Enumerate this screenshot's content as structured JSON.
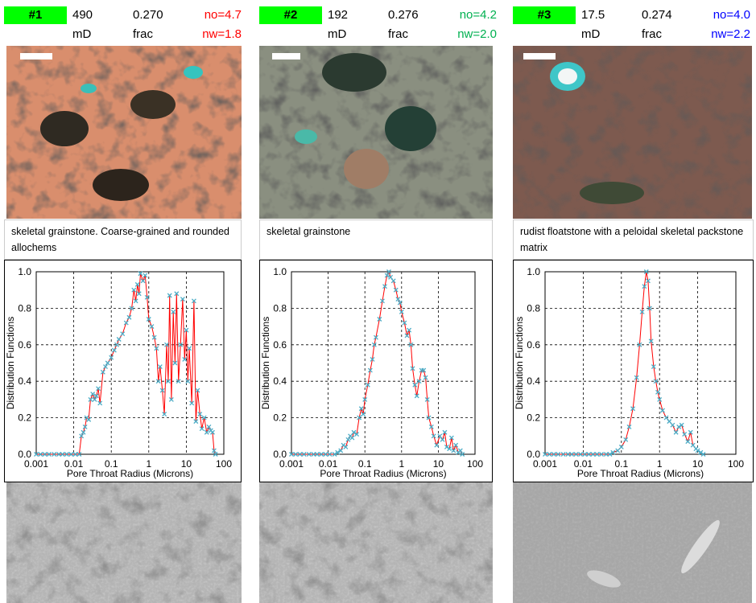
{
  "panels": [
    {
      "label": "#1",
      "perm": "490",
      "porosity": "0.270",
      "no": "no=4.7",
      "perm_unit": "mD",
      "porosity_unit": "frac",
      "nw": "nw=1.8",
      "color": "#ff0000",
      "caption": "skeletal grainstone. Coarse-grained and rounded allochems"
    },
    {
      "label": "#2",
      "perm": "192",
      "porosity": "0.276",
      "no": "no=4.2",
      "perm_unit": "mD",
      "porosity_unit": "frac",
      "nw": "nw=2.0",
      "color": "#00b050",
      "caption": "skeletal grainstone"
    },
    {
      "label": "#3",
      "perm": "17.5",
      "porosity": "0.274",
      "no": "no=4.0",
      "perm_unit": "mD",
      "porosity_unit": "frac",
      "nw": "nw=2.2",
      "color": "#0000ff",
      "caption": "rudist floatstone with a peloidal skeletal packstone matrix"
    }
  ],
  "chart_data": [
    {
      "type": "line",
      "xlabel": "Pore Throat Radius (Microns)",
      "ylabel": "Distribution Functions",
      "xlog": true,
      "grid": true,
      "xlim": [
        0.001,
        100
      ],
      "xticks": [
        0.001,
        0.01,
        0.1,
        1,
        10,
        100
      ],
      "ylim": [
        0,
        1
      ],
      "yticks": [
        {
          "value": 0,
          "label": "0.0"
        },
        0.2,
        0.4,
        0.6,
        0.8,
        {
          "value": 1,
          "label": "1.0"
        }
      ],
      "series": [
        {
          "color": "#ff0000",
          "marker_color": "#4bacc6",
          "x": [
            0.001,
            0.0013,
            0.0017,
            0.0022,
            0.003,
            0.004,
            0.005,
            0.0065,
            0.0085,
            0.011,
            0.014,
            0.016,
            0.018,
            0.02,
            0.022,
            0.025,
            0.028,
            0.032,
            0.036,
            0.04,
            0.045,
            0.05,
            0.06,
            0.07,
            0.08,
            0.1,
            0.12,
            0.14,
            0.16,
            0.2,
            0.25,
            0.3,
            0.35,
            0.4,
            0.45,
            0.5,
            0.55,
            0.6,
            0.7,
            0.8,
            0.9,
            1.0,
            1.2,
            1.4,
            1.6,
            1.8,
            2.0,
            2.3,
            2.6,
            3.0,
            3.3,
            3.6,
            4.0,
            4.5,
            5.0,
            5.5,
            6.2,
            7.0,
            8.0,
            9.0,
            10,
            11,
            12,
            14,
            16,
            18,
            20,
            23,
            26,
            30,
            35,
            40,
            45,
            50,
            55,
            60
          ],
          "values": [
            0,
            0,
            0,
            0,
            0,
            0,
            0,
            0,
            0,
            0,
            0,
            0.1,
            0.12,
            0.15,
            0.2,
            0.19,
            0.3,
            0.33,
            0.3,
            0.32,
            0.36,
            0.28,
            0.45,
            0.48,
            0.5,
            0.53,
            0.57,
            0.6,
            0.63,
            0.66,
            0.72,
            0.75,
            0.8,
            0.9,
            0.84,
            0.93,
            0.88,
            0.99,
            0.95,
            0.98,
            0.86,
            0.74,
            0.7,
            0.64,
            0.58,
            0.4,
            0.48,
            0.35,
            0.22,
            0.6,
            0.4,
            0.87,
            0.3,
            0.78,
            0.5,
            0.88,
            0.4,
            0.6,
            0.85,
            0.52,
            0.68,
            0.4,
            0.58,
            0.28,
            0.84,
            0.18,
            0.35,
            0.22,
            0.14,
            0.2,
            0.12,
            0.15,
            0.13,
            0.12,
            0.02,
            0
          ]
        }
      ]
    },
    {
      "type": "line",
      "xlabel": "Pore Throat Radius (Microns)",
      "ylabel": "Distribution Functions",
      "xlog": true,
      "grid": true,
      "xlim": [
        0.001,
        100
      ],
      "xticks": [
        0.001,
        0.01,
        0.1,
        1,
        10,
        100
      ],
      "ylim": [
        0,
        1
      ],
      "yticks": [
        {
          "value": 0,
          "label": "0.0"
        },
        0.2,
        0.4,
        0.6,
        0.8,
        {
          "value": 1,
          "label": "1.0"
        }
      ],
      "series": [
        {
          "color": "#ff0000",
          "marker_color": "#4bacc6",
          "x": [
            0.001,
            0.0013,
            0.0017,
            0.0022,
            0.003,
            0.004,
            0.005,
            0.0065,
            0.0085,
            0.011,
            0.015,
            0.018,
            0.022,
            0.026,
            0.03,
            0.035,
            0.04,
            0.045,
            0.05,
            0.06,
            0.07,
            0.08,
            0.09,
            0.1,
            0.12,
            0.14,
            0.16,
            0.18,
            0.2,
            0.25,
            0.3,
            0.35,
            0.4,
            0.45,
            0.5,
            0.6,
            0.7,
            0.8,
            0.9,
            1.0,
            1.2,
            1.4,
            1.6,
            1.8,
            2.0,
            2.3,
            2.6,
            3.0,
            3.5,
            4.0,
            4.5,
            5.0,
            5.5,
            6.5,
            7.5,
            9,
            11,
            13,
            15,
            17,
            20,
            23,
            26,
            30,
            35,
            40,
            45
          ],
          "values": [
            0,
            0,
            0,
            0,
            0,
            0,
            0,
            0,
            0,
            0,
            0,
            0.01,
            0.02,
            0.05,
            0.04,
            0.08,
            0.1,
            0.09,
            0.12,
            0.11,
            0.2,
            0.25,
            0.22,
            0.3,
            0.38,
            0.46,
            0.52,
            0.6,
            0.64,
            0.74,
            0.84,
            0.92,
            0.98,
            1.0,
            0.97,
            0.95,
            0.9,
            0.85,
            0.83,
            0.78,
            0.72,
            0.65,
            0.68,
            0.6,
            0.47,
            0.38,
            0.32,
            0.4,
            0.46,
            0.46,
            0.42,
            0.3,
            0.2,
            0.15,
            0.1,
            0.05,
            0.1,
            0.08,
            0.12,
            0.04,
            0.03,
            0.09,
            0.02,
            0.05,
            0.01,
            0.02,
            0
          ]
        }
      ]
    },
    {
      "type": "line",
      "xlabel": "Pore Throat Radius (Microns)",
      "ylabel": "Distribution Functions",
      "xlog": true,
      "grid": true,
      "xlim": [
        0.001,
        100
      ],
      "xticks": [
        0.001,
        0.01,
        0.1,
        1,
        10,
        100
      ],
      "ylim": [
        0,
        1
      ],
      "yticks": [
        {
          "value": 0,
          "label": "0.0"
        },
        0.2,
        0.4,
        0.6,
        0.8,
        {
          "value": 1,
          "label": "1.0"
        }
      ],
      "series": [
        {
          "color": "#ff0000",
          "marker_color": "#4bacc6",
          "x": [
            0.001,
            0.0013,
            0.0017,
            0.0022,
            0.003,
            0.004,
            0.005,
            0.0065,
            0.0085,
            0.011,
            0.014,
            0.018,
            0.023,
            0.03,
            0.04,
            0.05,
            0.06,
            0.08,
            0.1,
            0.13,
            0.16,
            0.2,
            0.25,
            0.3,
            0.35,
            0.4,
            0.45,
            0.5,
            0.55,
            0.6,
            0.7,
            0.8,
            0.9,
            1.0,
            1.2,
            1.5,
            1.8,
            2.2,
            2.7,
            3.2,
            3.8,
            4.5,
            5.5,
            6.5,
            7.5,
            9,
            10,
            12,
            14
          ],
          "values": [
            0,
            0,
            0,
            0,
            0,
            0,
            0,
            0,
            0,
            0,
            0,
            0,
            0,
            0,
            0,
            0,
            0.01,
            0.02,
            0.04,
            0.08,
            0.15,
            0.25,
            0.42,
            0.6,
            0.78,
            0.92,
            1.0,
            0.95,
            0.8,
            0.62,
            0.48,
            0.4,
            0.34,
            0.3,
            0.24,
            0.2,
            0.18,
            0.16,
            0.12,
            0.15,
            0.16,
            0.11,
            0.07,
            0.12,
            0.05,
            0.03,
            0.02,
            0.01,
            0
          ]
        }
      ]
    }
  ]
}
